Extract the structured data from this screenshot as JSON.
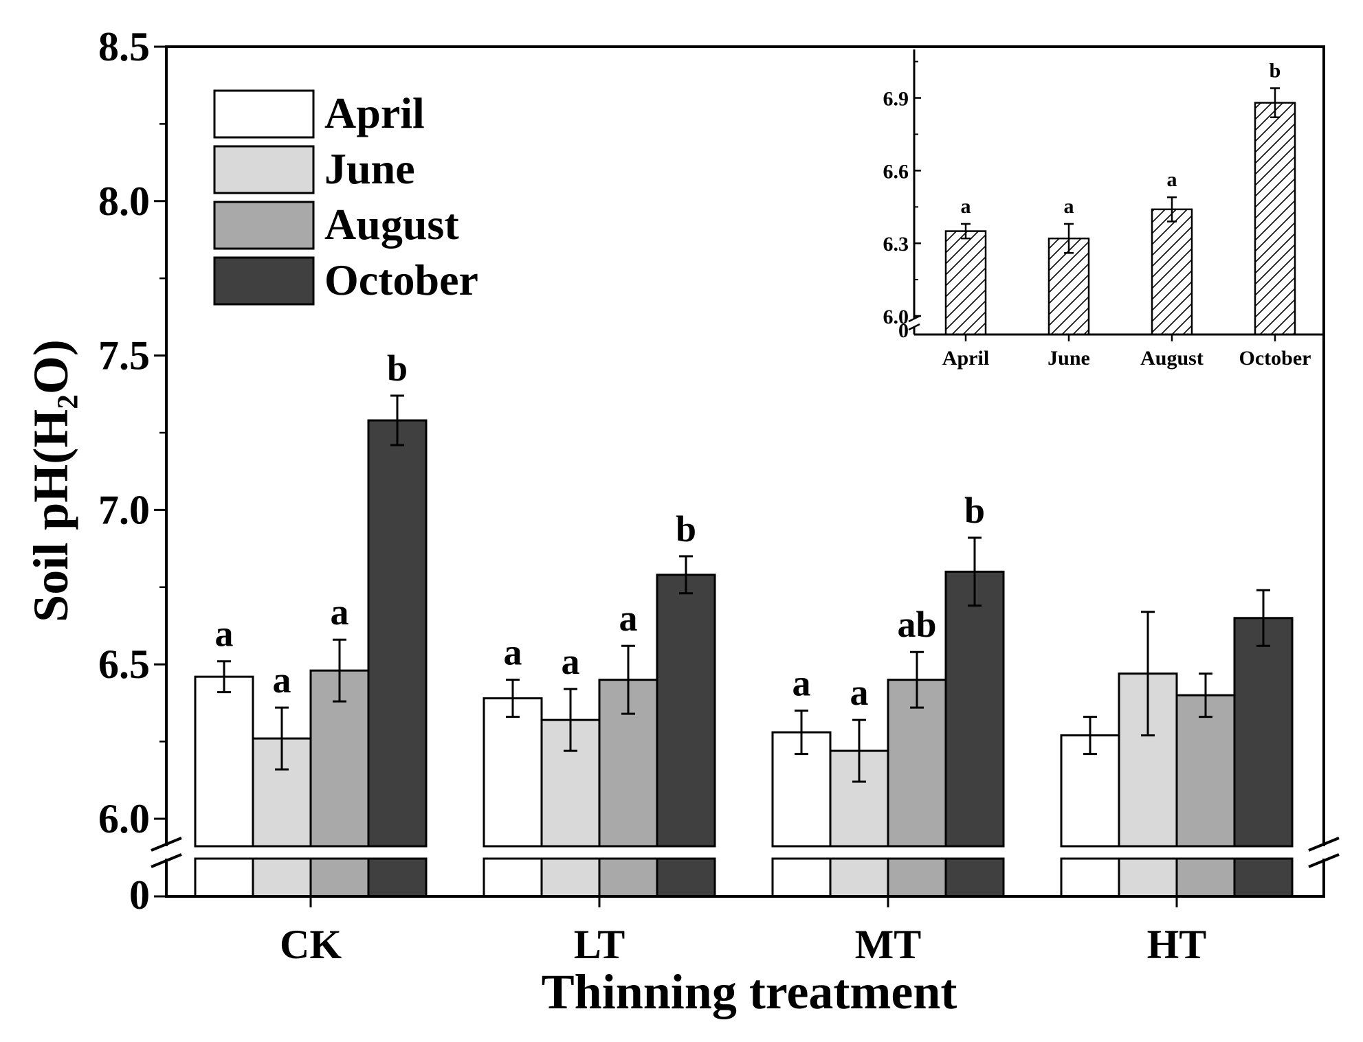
{
  "chart_data": [
    {
      "type": "bar",
      "xlabel": "Thinning treatment",
      "ylabel": "Soil pH(H₂O)",
      "ylim": [
        6.0,
        8.5
      ],
      "yticks": [
        "8.5",
        "8.0",
        "7.5",
        "7.0",
        "6.5",
        "6.0"
      ],
      "axis_break_label": "0",
      "categories": [
        "CK",
        "LT",
        "MT",
        "HT"
      ],
      "legend_position": "top-left",
      "series": [
        {
          "name": "April",
          "color": "#ffffff",
          "values": [
            6.46,
            6.39,
            6.28,
            6.27
          ],
          "errors": [
            0.05,
            0.06,
            0.07,
            0.06
          ],
          "labels": [
            "a",
            "a",
            "a",
            ""
          ]
        },
        {
          "name": "June",
          "color": "#d9d9d9",
          "values": [
            6.26,
            6.32,
            6.22,
            6.47
          ],
          "errors": [
            0.1,
            0.1,
            0.1,
            0.2
          ],
          "labels": [
            "a",
            "a",
            "a",
            ""
          ]
        },
        {
          "name": "August",
          "color": "#a9a9a9",
          "values": [
            6.48,
            6.45,
            6.45,
            6.4
          ],
          "errors": [
            0.1,
            0.11,
            0.09,
            0.07
          ],
          "labels": [
            "a",
            "a",
            "ab",
            ""
          ]
        },
        {
          "name": "October",
          "color": "#404040",
          "values": [
            7.29,
            6.79,
            6.8,
            6.65
          ],
          "errors": [
            0.08,
            0.06,
            0.11,
            0.09
          ],
          "labels": [
            "b",
            "b",
            "b",
            ""
          ]
        }
      ]
    },
    {
      "type": "bar",
      "position": "inset top-right",
      "ylim": [
        6.0,
        7.1
      ],
      "yticks": [
        "6.9",
        "6.6",
        "6.3",
        "6.0"
      ],
      "axis_break_label": "0",
      "categories": [
        "April",
        "June",
        "August",
        "October"
      ],
      "fill": "hatched",
      "values": [
        6.35,
        6.32,
        6.44,
        6.88
      ],
      "errors": [
        0.03,
        0.06,
        0.05,
        0.06
      ],
      "labels": [
        "a",
        "a",
        "a",
        "b"
      ]
    }
  ]
}
